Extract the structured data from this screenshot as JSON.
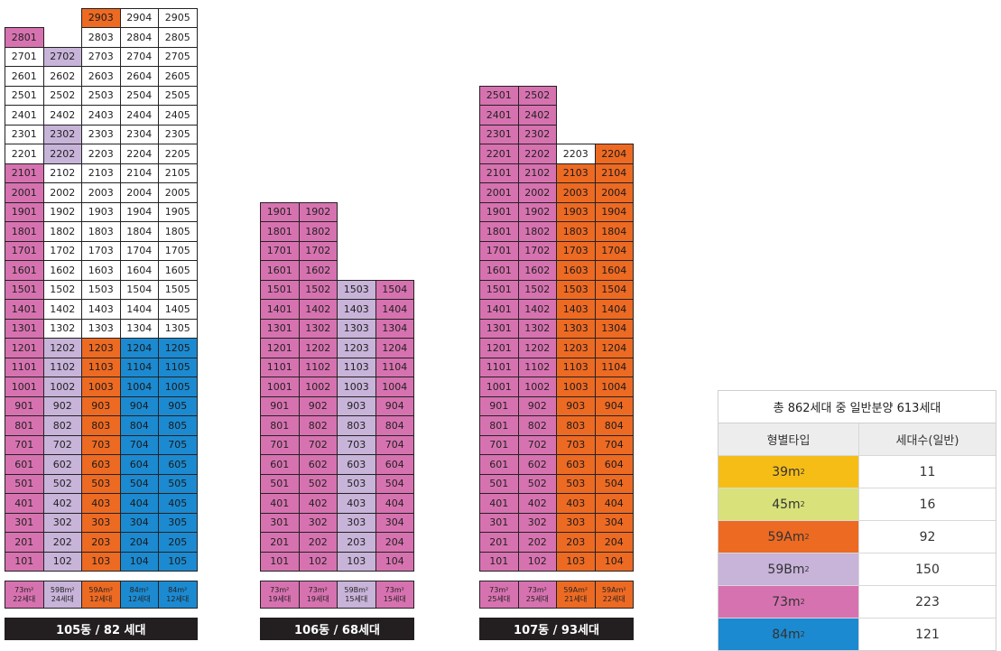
{
  "colors": {
    "39": "#f6bd16",
    "45": "#d9e27a",
    "59A": "#ed6a23",
    "59B": "#c8b3d9",
    "73": "#d772b0",
    "84": "#1c8ad0",
    "none": "#ffffff"
  },
  "buildings": [
    {
      "id": "105",
      "label": "105동 / 82 세대",
      "top_floor": 29,
      "columns": [
        {
          "line": "01",
          "max_floor": 28,
          "type": "73",
          "default": "73",
          "white_floors": [
            27,
            26,
            25,
            24,
            23,
            22
          ],
          "area": "73",
          "count": "22세대"
        },
        {
          "line": "02",
          "max_floor": 27,
          "type": "59B",
          "default": "59B",
          "white_floors": [
            26,
            25,
            24,
            21,
            20,
            19,
            18,
            17,
            16,
            15,
            14,
            13
          ],
          "area": "59B",
          "count": "24세대"
        },
        {
          "line": "03",
          "max_floor": 29,
          "type": "59A",
          "default": "59A",
          "white_floors": [
            28,
            27,
            26,
            25,
            24,
            23,
            22,
            21,
            20,
            19,
            18,
            17,
            16,
            15,
            14,
            13
          ],
          "area": "59A",
          "count": "12세대"
        },
        {
          "line": "04",
          "max_floor": 29,
          "type": "84",
          "default": "84",
          "white_floors": [
            29,
            28,
            27,
            26,
            25,
            24,
            23,
            22,
            21,
            20,
            19,
            18,
            17,
            16,
            15,
            14,
            13
          ],
          "area": "84",
          "count": "12세대"
        },
        {
          "line": "05",
          "max_floor": 29,
          "type": "84",
          "default": "84",
          "white_floors": [
            29,
            28,
            27,
            26,
            25,
            24,
            23,
            22,
            21,
            20,
            19,
            18,
            17,
            16,
            15,
            14,
            13
          ],
          "area": "84",
          "count": "12세대"
        }
      ]
    },
    {
      "id": "106",
      "label": "106동 / 68세대",
      "top_floor": 19,
      "columns": [
        {
          "line": "01",
          "max_floor": 19,
          "type": "73",
          "default": "73",
          "white_floors": [],
          "area": "73",
          "count": "19세대"
        },
        {
          "line": "02",
          "max_floor": 19,
          "type": "73",
          "default": "73",
          "white_floors": [],
          "area": "73",
          "count": "19세대"
        },
        {
          "line": "03",
          "max_floor": 15,
          "type": "59B",
          "default": "59B",
          "white_floors": [],
          "area": "59B",
          "count": "15세대"
        },
        {
          "line": "04",
          "max_floor": 15,
          "type": "73",
          "default": "73",
          "white_floors": [],
          "area": "73",
          "count": "15세대"
        }
      ]
    },
    {
      "id": "107",
      "label": "107동 / 93세대",
      "top_floor": 25,
      "columns": [
        {
          "line": "01",
          "max_floor": 25,
          "type": "73",
          "default": "73",
          "white_floors": [],
          "area": "73",
          "count": "25세대"
        },
        {
          "line": "02",
          "max_floor": 25,
          "type": "73",
          "default": "73",
          "white_floors": [],
          "area": "73",
          "count": "25세대"
        },
        {
          "line": "03",
          "max_floor": 22,
          "type": "59A",
          "default": "59A",
          "white_floors": [
            22
          ],
          "area": "59A",
          "count": "21세대"
        },
        {
          "line": "04",
          "max_floor": 22,
          "type": "59A",
          "default": "59A",
          "white_floors": [],
          "area": "59A",
          "count": "22세대"
        }
      ]
    }
  ],
  "type_labels": {
    "73": "73m²",
    "59B": "59Bm²",
    "59A": "59Am²",
    "84": "84m²"
  },
  "legend": {
    "title": "총 862세대 중 일반분양 613세대",
    "header_type": "형별타입",
    "header_count": "세대수(일반)",
    "rows": [
      {
        "type": "39",
        "label": "39m",
        "sup": "2",
        "count": "11"
      },
      {
        "type": "45",
        "label": "45m",
        "sup": "2",
        "count": "16"
      },
      {
        "type": "59A",
        "label": "59Am",
        "sup": "2",
        "count": "92"
      },
      {
        "type": "59B",
        "label": "59Bm",
        "sup": "2",
        "count": "150"
      },
      {
        "type": "73",
        "label": "73m",
        "sup": "2",
        "count": "223"
      },
      {
        "type": "84",
        "label": "84m",
        "sup": "2",
        "count": "121"
      }
    ]
  }
}
